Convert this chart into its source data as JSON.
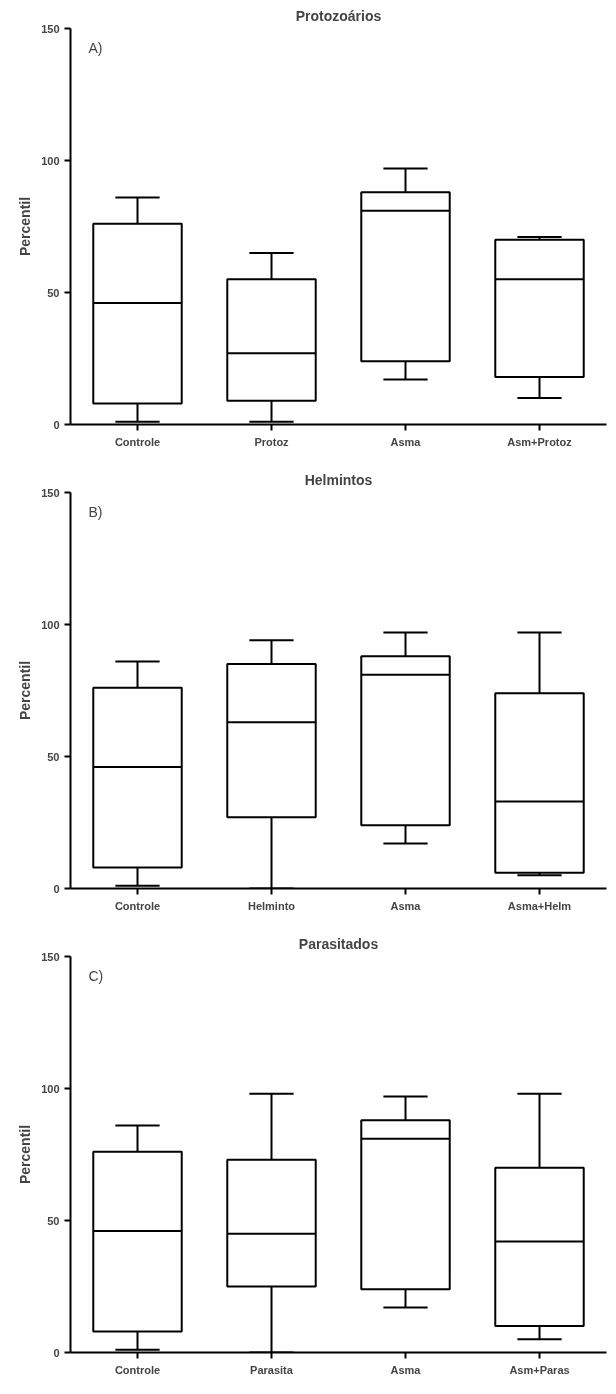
{
  "chart_data": [
    {
      "type": "box",
      "title": "Protozoários",
      "ylabel": "Percentil",
      "annotations": [
        "A)"
      ],
      "categories": [
        "Controle",
        "Protoz",
        "Asma",
        "Asm+Protoz"
      ],
      "ylim": [
        0,
        150
      ],
      "yticks": [
        0,
        50,
        100,
        150
      ],
      "grid": false,
      "color": "#000000",
      "boxes": [
        {
          "low": 1,
          "q1": 8,
          "median": 46,
          "q3": 76,
          "high": 86
        },
        {
          "low": 1,
          "q1": 9,
          "median": 27,
          "q3": 55,
          "high": 65
        },
        {
          "low": 17,
          "q1": 24,
          "median": 81,
          "q3": 88,
          "high": 97
        },
        {
          "low": 10,
          "q1": 18,
          "median": 55,
          "q3": 70,
          "high": 71
        }
      ]
    },
    {
      "type": "box",
      "title": "Helmintos",
      "ylabel": "Percentil",
      "annotations": [
        "B)"
      ],
      "categories": [
        "Controle",
        "Helminto",
        "Asma",
        "Asma+Helm"
      ],
      "ylim": [
        0,
        150
      ],
      "yticks": [
        0,
        50,
        100,
        150
      ],
      "grid": false,
      "color": "#000000",
      "boxes": [
        {
          "low": 1,
          "q1": 8,
          "median": 46,
          "q3": 76,
          "high": 86
        },
        {
          "low": 0,
          "q1": 27,
          "median": 63,
          "q3": 85,
          "high": 94
        },
        {
          "low": 17,
          "q1": 24,
          "median": 81,
          "q3": 88,
          "high": 97
        },
        {
          "low": 5,
          "q1": 6,
          "median": 33,
          "q3": 74,
          "high": 97
        }
      ]
    },
    {
      "type": "box",
      "title": "Parasitados",
      "ylabel": "Percentil",
      "annotations": [
        "C)"
      ],
      "categories": [
        "Controle",
        "Parasita",
        "Asma",
        "Asm+Paras"
      ],
      "ylim": [
        0,
        150
      ],
      "yticks": [
        0,
        50,
        100,
        150
      ],
      "grid": false,
      "color": "#000000",
      "boxes": [
        {
          "low": 1,
          "q1": 8,
          "median": 46,
          "q3": 76,
          "high": 86
        },
        {
          "low": 0,
          "q1": 25,
          "median": 45,
          "q3": 73,
          "high": 98
        },
        {
          "low": 17,
          "q1": 24,
          "median": 81,
          "q3": 88,
          "high": 97
        },
        {
          "low": 5,
          "q1": 10,
          "median": 42,
          "q3": 70,
          "high": 98
        }
      ]
    }
  ]
}
